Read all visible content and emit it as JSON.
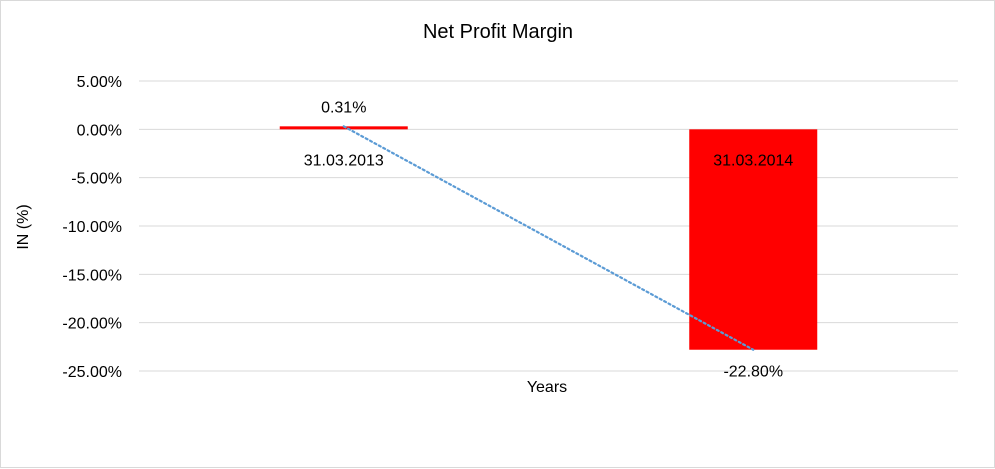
{
  "chart_data": {
    "type": "bar",
    "title": "Net Profit Margin",
    "xlabel": "Years",
    "ylabel": "IN (%)",
    "categories": [
      "31.03.2013",
      "31.03.2014"
    ],
    "series": [
      {
        "values": [
          0.31,
          -22.8
        ],
        "data_labels": [
          "0.31%",
          "-22.80%"
        ],
        "color": "#ff0000"
      }
    ],
    "trendline": {
      "type": "linear",
      "style": "dotted",
      "color": "#5b9bd5"
    },
    "ylim": [
      -25,
      5
    ],
    "yticks": [
      5,
      0,
      -5,
      -10,
      -15,
      -20,
      -25
    ],
    "ytick_labels": [
      "5.00%",
      "0.00%",
      "-5.00%",
      "-10.00%",
      "-15.00%",
      "-20.00%",
      "-25.00%"
    ],
    "grid": true,
    "gridline_color": "#d9d9d9",
    "legend": "none"
  }
}
